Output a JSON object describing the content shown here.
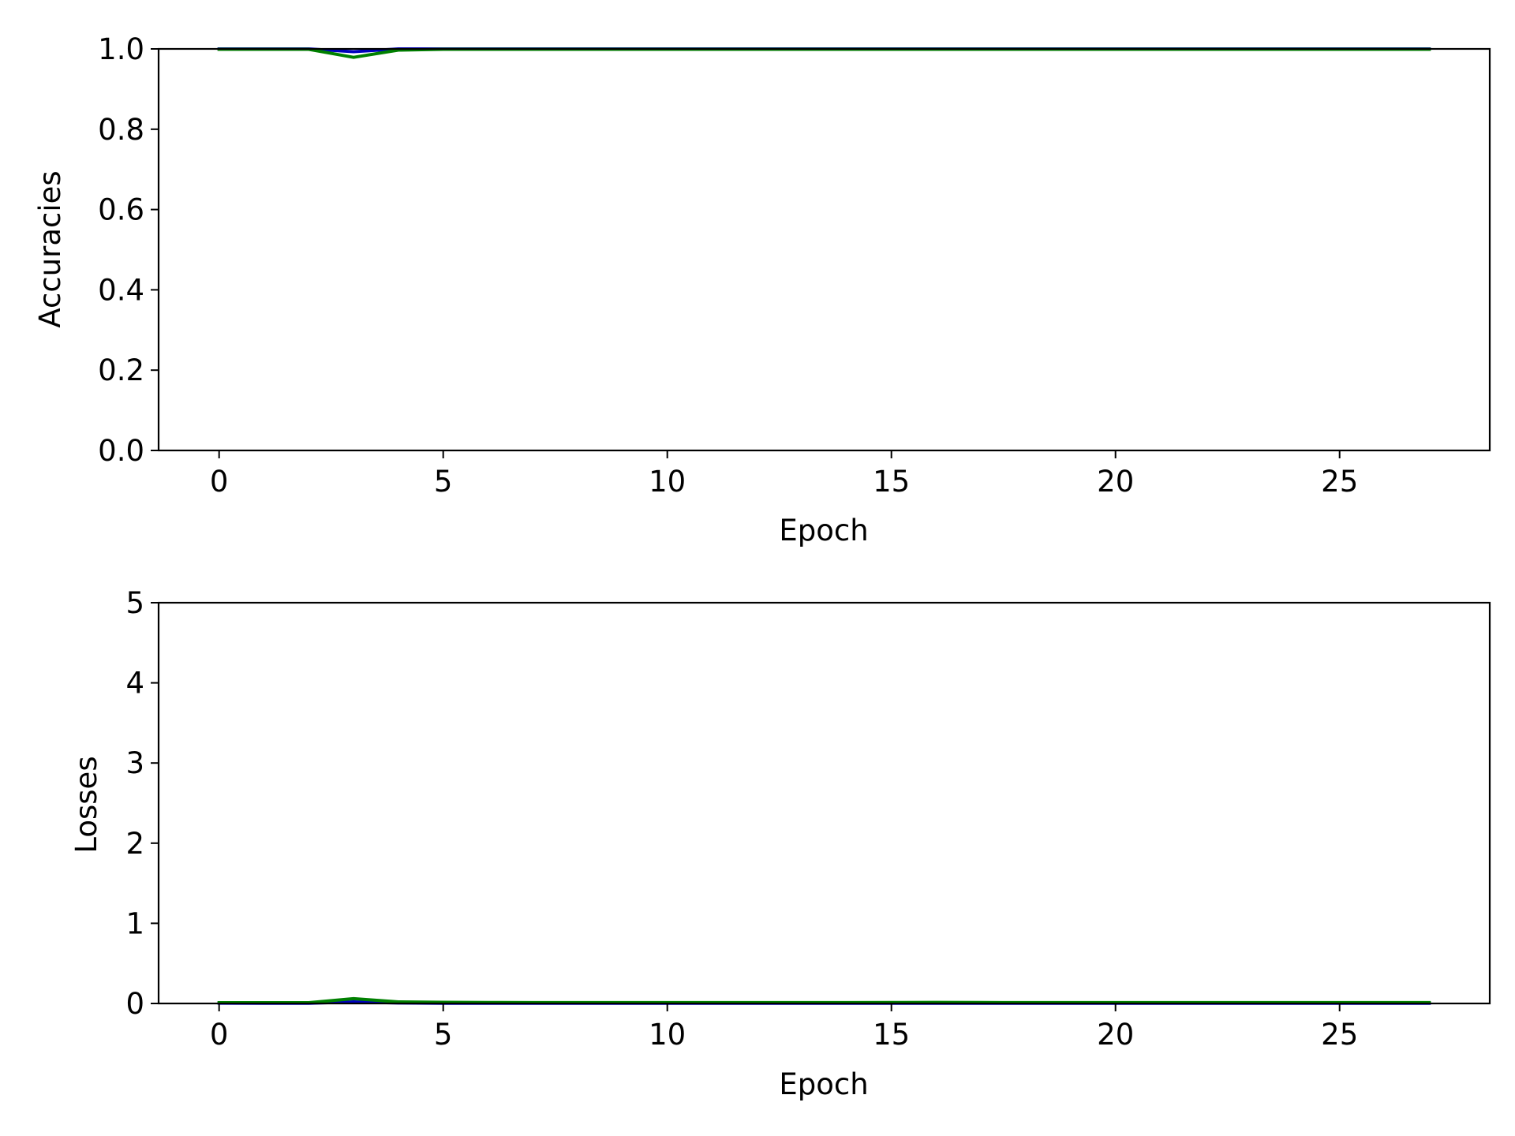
{
  "chart_data": [
    {
      "type": "line",
      "xlabel": "Epoch",
      "ylabel": "Accuracies",
      "xlim": [
        -1.35,
        28.35
      ],
      "ylim": [
        0.0,
        1.0
      ],
      "xticks": [
        "0",
        "5",
        "10",
        "15",
        "20",
        "25"
      ],
      "yticks": [
        "0.0",
        "0.2",
        "0.4",
        "0.6",
        "0.8",
        "1.0"
      ],
      "grid": false,
      "x": [
        0,
        1,
        2,
        3,
        4,
        5,
        6,
        7,
        8,
        9,
        10,
        11,
        12,
        13,
        14,
        15,
        16,
        17,
        18,
        19,
        20,
        21,
        22,
        23,
        24,
        25,
        26,
        27
      ],
      "series": [
        {
          "color": "#0000bf",
          "values": [
            1.0,
            1.0,
            1.0,
            0.993,
            1.0,
            1.0,
            1.0,
            1.0,
            1.0,
            1.0,
            1.0,
            1.0,
            1.0,
            1.0,
            1.0,
            1.0,
            1.0,
            1.0,
            1.0,
            1.0,
            1.0,
            1.0,
            1.0,
            1.0,
            1.0,
            1.0,
            1.0,
            1.0
          ]
        },
        {
          "color": "#008000",
          "values": [
            0.999,
            0.999,
            0.999,
            0.979,
            0.997,
            0.999,
            0.999,
            0.999,
            0.999,
            0.999,
            0.999,
            0.999,
            0.999,
            0.999,
            0.999,
            0.999,
            0.999,
            0.999,
            0.999,
            0.999,
            0.999,
            0.999,
            0.999,
            0.999,
            0.999,
            0.999,
            0.999,
            0.999
          ]
        }
      ]
    },
    {
      "type": "line",
      "xlabel": "Epoch",
      "ylabel": "Losses",
      "xlim": [
        -1.35,
        28.35
      ],
      "ylim": [
        0,
        5
      ],
      "xticks": [
        "0",
        "5",
        "10",
        "15",
        "20",
        "25"
      ],
      "yticks": [
        "0",
        "1",
        "2",
        "3",
        "4",
        "5"
      ],
      "grid": false,
      "x": [
        0,
        1,
        2,
        3,
        4,
        5,
        6,
        7,
        8,
        9,
        10,
        11,
        12,
        13,
        14,
        15,
        16,
        17,
        18,
        19,
        20,
        21,
        22,
        23,
        24,
        25,
        26,
        27
      ],
      "series": [
        {
          "color": "#0000bf",
          "values": [
            0.004,
            0.003,
            0.003,
            0.02,
            0.006,
            0.003,
            0.002,
            0.002,
            0.002,
            0.002,
            0.002,
            0.002,
            0.002,
            0.002,
            0.002,
            0.002,
            0.002,
            0.002,
            0.002,
            0.002,
            0.002,
            0.002,
            0.002,
            0.002,
            0.002,
            0.002,
            0.002,
            0.002
          ]
        },
        {
          "color": "#008000",
          "values": [
            0.01,
            0.01,
            0.01,
            0.06,
            0.02,
            0.015,
            0.012,
            0.011,
            0.011,
            0.011,
            0.011,
            0.011,
            0.011,
            0.011,
            0.011,
            0.012,
            0.013,
            0.012,
            0.011,
            0.011,
            0.011,
            0.011,
            0.011,
            0.011,
            0.011,
            0.011,
            0.011,
            0.011
          ]
        }
      ]
    }
  ]
}
